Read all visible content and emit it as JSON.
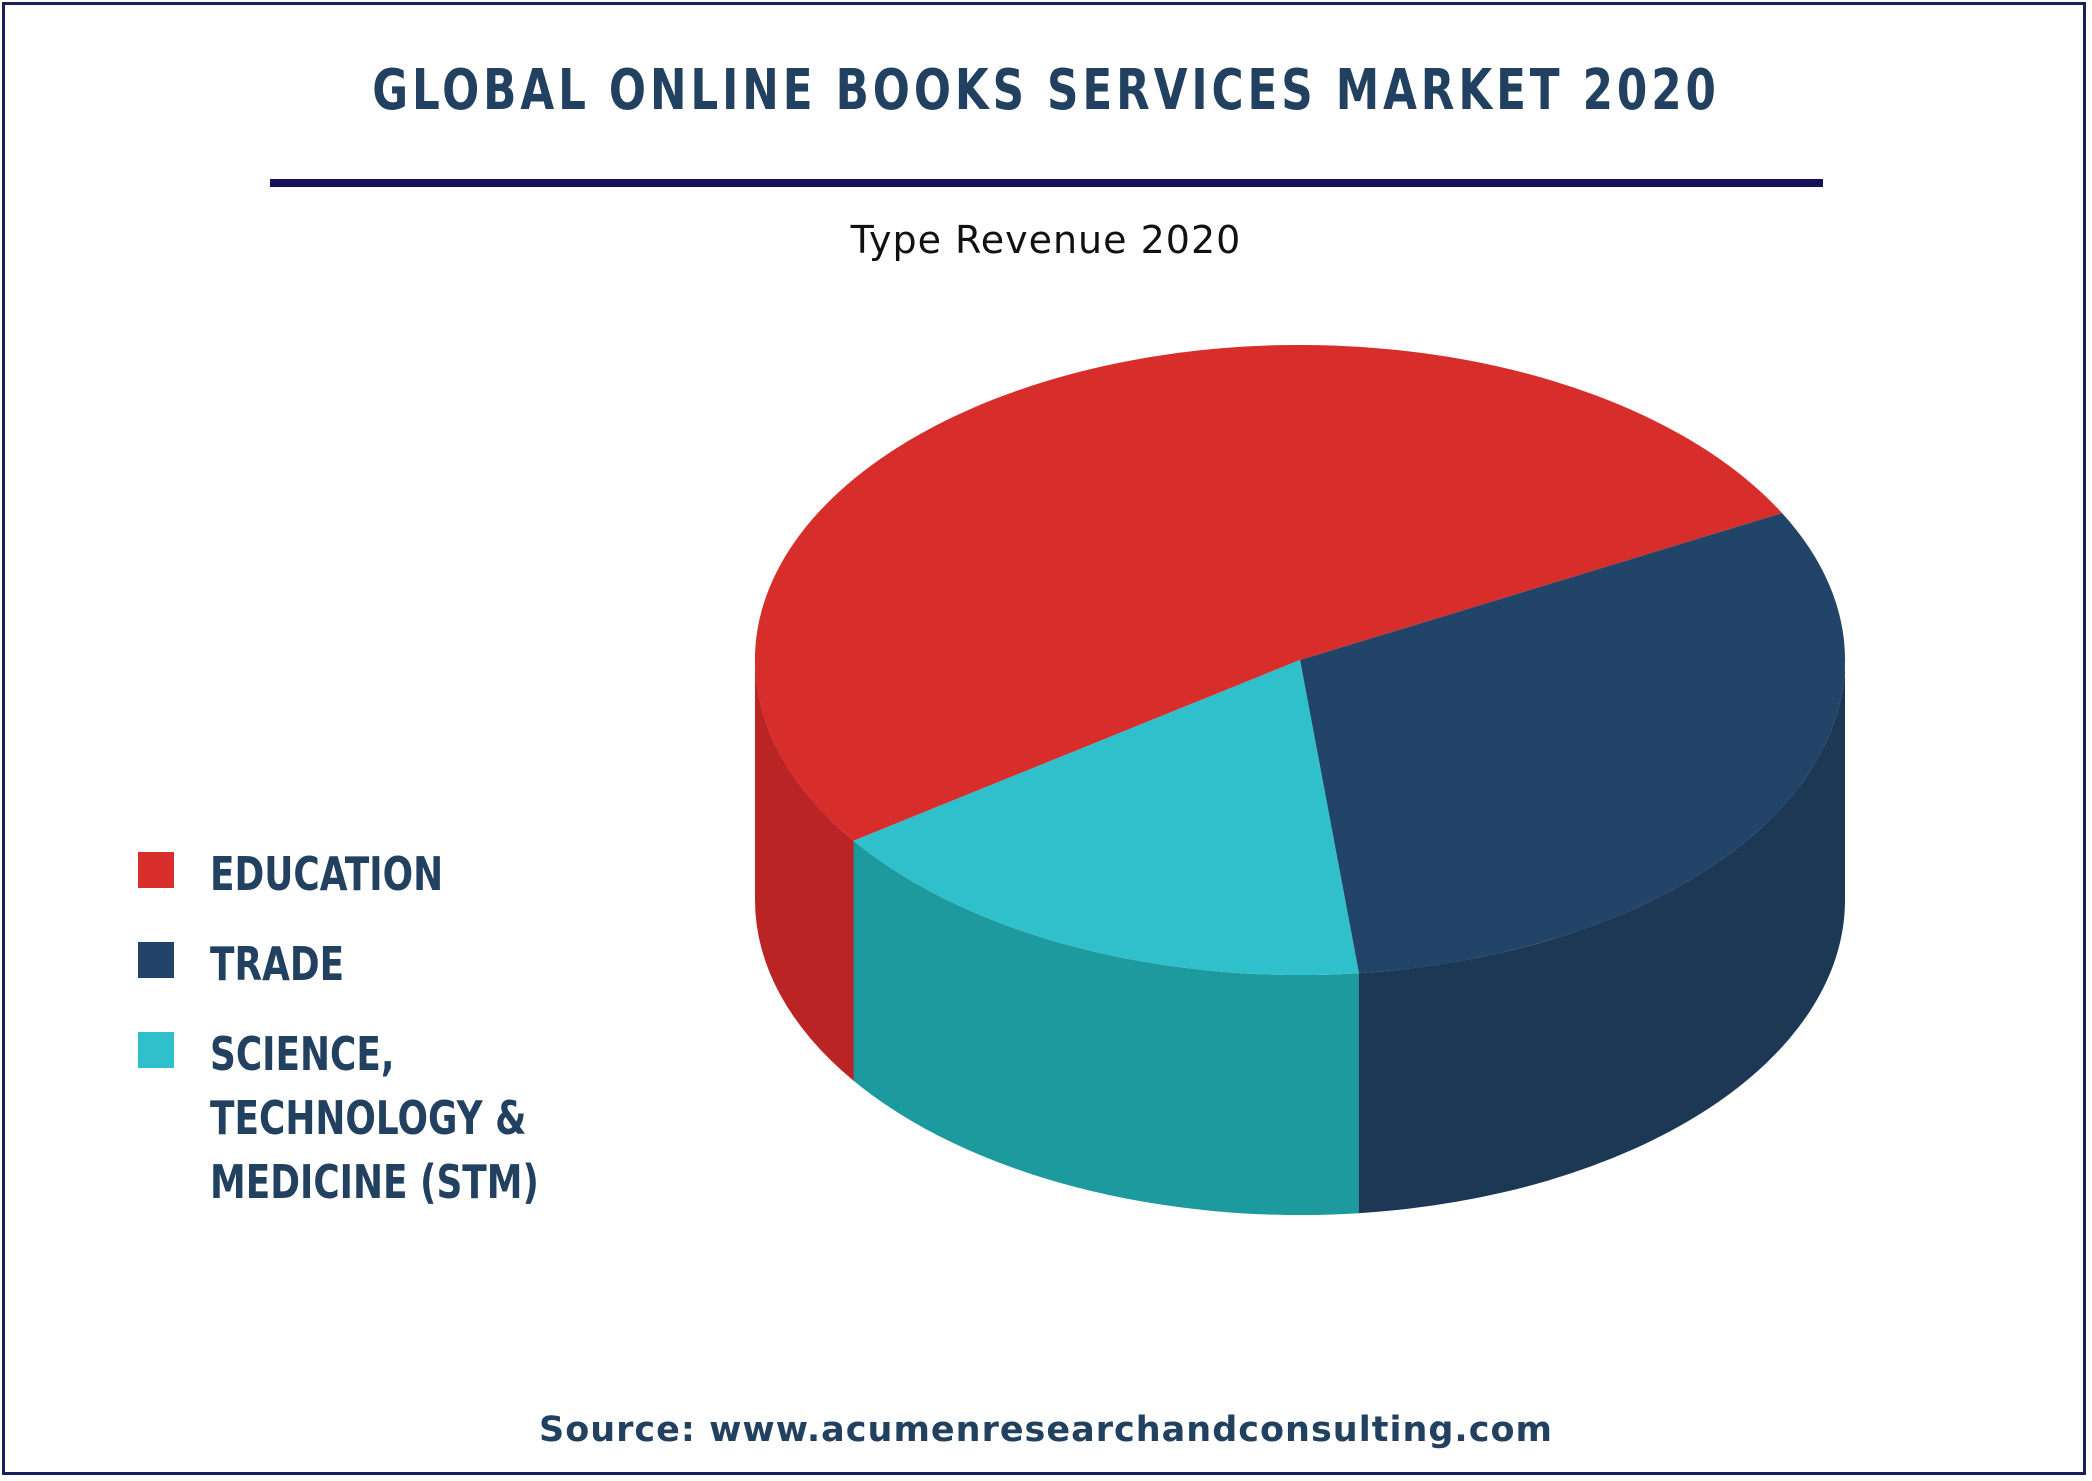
{
  "title": "GLOBAL ONLINE BOOKS SERVICES MARKET 2020",
  "source": "Source: www.acumenresearchandconsulting.com",
  "chart_data": {
    "type": "pie",
    "style": "3d",
    "subtitle": "Type Revenue 2020",
    "categories": [
      "EDUCATION",
      "TRADE",
      "SCIENCE, TECHNOLOGY & MEDICINE (STM)"
    ],
    "values": [
      52,
      31,
      17
    ],
    "unit": "%",
    "legend_position": "left",
    "colors": {
      "EDUCATION": {
        "top": "#d72e2b",
        "side": "#bb2424"
      },
      "TRADE": {
        "top": "#234469",
        "side": "#1d3855"
      },
      "SCIENCE, TECHNOLOGY & MEDICINE (STM)": {
        "top": "#30c0cb",
        "side": "#1d9a9e"
      }
    }
  },
  "accents": {
    "frame": "#1b1f5c",
    "rule": "#14125a",
    "text": "#22405f"
  }
}
